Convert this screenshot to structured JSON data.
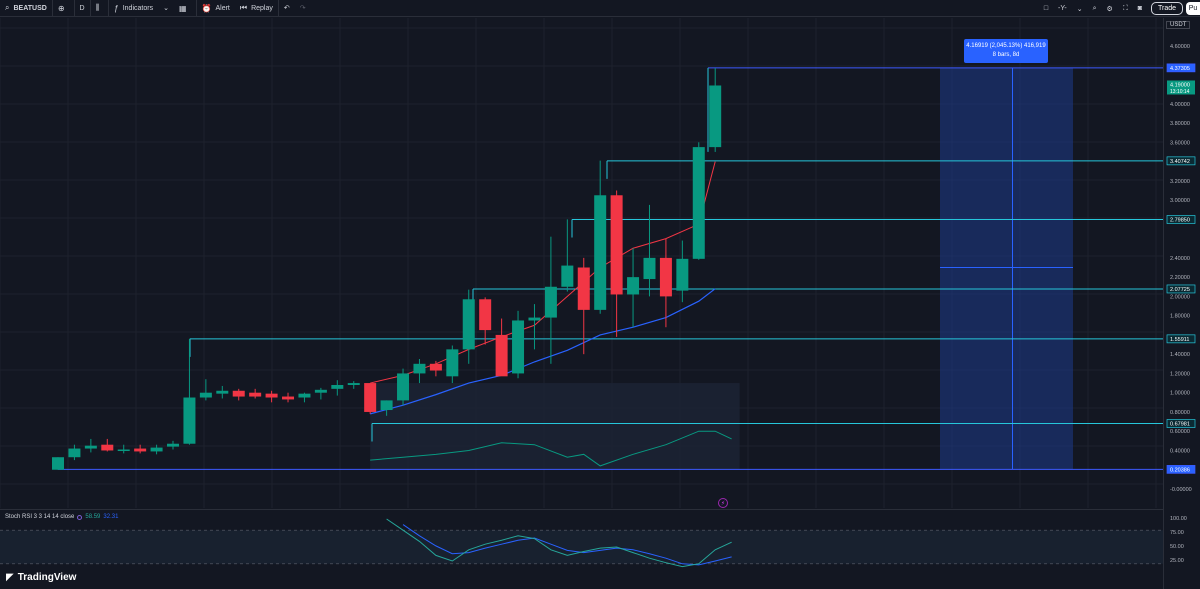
{
  "toolbar": {
    "symbol": "BEATUSD",
    "interval": "D",
    "indicators_label": "Indicators",
    "alert_label": "Alert",
    "replay_label": "Replay",
    "layout_label": "-Y-",
    "trade_label": "Trade",
    "publish_label": "Pu"
  },
  "axis": {
    "currency": "USDT",
    "labels": [
      {
        "text": "4.60000",
        "v": 4.6
      },
      {
        "text": "4.00000",
        "v": 4.0
      },
      {
        "text": "3.80000",
        "v": 3.8
      },
      {
        "text": "3.60000",
        "v": 3.6
      },
      {
        "text": "3.20000",
        "v": 3.2
      },
      {
        "text": "3.00000",
        "v": 3.0
      },
      {
        "text": "2.40000",
        "v": 2.4
      },
      {
        "text": "2.20000",
        "v": 2.2
      },
      {
        "text": "2.00000",
        "v": 2.0
      },
      {
        "text": "1.80000",
        "v": 1.8
      },
      {
        "text": "1.40000",
        "v": 1.4
      },
      {
        "text": "1.20000",
        "v": 1.2
      },
      {
        "text": "1.00000",
        "v": 1.0
      },
      {
        "text": "0.80000",
        "v": 0.8
      },
      {
        "text": "0.60000",
        "v": 0.6
      },
      {
        "text": "0.40000",
        "v": 0.4
      },
      {
        "text": "-0.00000",
        "v": 0.0
      }
    ],
    "price_lines": [
      {
        "text": "4.37305",
        "v": 4.37305,
        "color": "#3d5afe"
      },
      {
        "text": "3.40742",
        "v": 3.40742,
        "color": "#26c6da"
      },
      {
        "text": "2.79850",
        "v": 2.7985,
        "color": "#26c6da"
      },
      {
        "text": "2.07725",
        "v": 2.07725,
        "color": "#26c6da"
      },
      {
        "text": "1.55911",
        "v": 1.55911,
        "color": "#26c6da"
      },
      {
        "text": "0.67981",
        "v": 0.67981,
        "color": "#26c6da"
      },
      {
        "text": "0.20386",
        "v": 0.20386,
        "color": "#3d5afe"
      }
    ],
    "last_price": "4.19000",
    "countdown": "13:10:14"
  },
  "measure_tooltip": {
    "line1": "4.16919 (2,045.13%) 416,919",
    "line2": "8 bars, 8d"
  },
  "stoch": {
    "name": "Stoch RSI 3 3 14 14 close",
    "k_value": "58.59",
    "d_value": "32.31",
    "levels": [
      {
        "text": "100.00",
        "v": 100
      },
      {
        "text": "75.00",
        "v": 75
      },
      {
        "text": "50.00",
        "v": 50
      },
      {
        "text": "25.00",
        "v": 25
      }
    ]
  },
  "brand": {
    "name": "TradingView"
  },
  "colors": {
    "up": "#089981",
    "down": "#f23645",
    "ema_fast": "#f23645",
    "ema_slow": "#2962ff",
    "level": "#26c6da"
  },
  "candles": [
    {
      "o": 0.2,
      "h": 0.33,
      "l": 0.2,
      "c": 0.33
    },
    {
      "o": 0.33,
      "h": 0.46,
      "l": 0.3,
      "c": 0.42
    },
    {
      "o": 0.42,
      "h": 0.52,
      "l": 0.38,
      "c": 0.45
    },
    {
      "o": 0.46,
      "h": 0.52,
      "l": 0.39,
      "c": 0.4
    },
    {
      "o": 0.4,
      "h": 0.46,
      "l": 0.37,
      "c": 0.41
    },
    {
      "o": 0.42,
      "h": 0.46,
      "l": 0.37,
      "c": 0.39
    },
    {
      "o": 0.39,
      "h": 0.46,
      "l": 0.36,
      "c": 0.43
    },
    {
      "o": 0.44,
      "h": 0.5,
      "l": 0.41,
      "c": 0.47
    },
    {
      "o": 0.47,
      "h": 1.56,
      "l": 0.46,
      "c": 0.95
    },
    {
      "o": 0.95,
      "h": 1.14,
      "l": 0.92,
      "c": 1.0
    },
    {
      "o": 0.99,
      "h": 1.07,
      "l": 0.94,
      "c": 1.02
    },
    {
      "o": 1.02,
      "h": 1.04,
      "l": 0.92,
      "c": 0.96
    },
    {
      "o": 1.0,
      "h": 1.04,
      "l": 0.94,
      "c": 0.96
    },
    {
      "o": 0.99,
      "h": 1.02,
      "l": 0.9,
      "c": 0.95
    },
    {
      "o": 0.96,
      "h": 1.0,
      "l": 0.9,
      "c": 0.93
    },
    {
      "o": 0.95,
      "h": 1.0,
      "l": 0.9,
      "c": 0.99
    },
    {
      "o": 1.0,
      "h": 1.05,
      "l": 0.93,
      "c": 1.03
    },
    {
      "o": 1.04,
      "h": 1.13,
      "l": 0.97,
      "c": 1.08
    },
    {
      "o": 1.08,
      "h": 1.12,
      "l": 1.04,
      "c": 1.1
    },
    {
      "o": 1.1,
      "h": 1.1,
      "l": 0.78,
      "c": 0.8
    },
    {
      "o": 0.82,
      "h": 0.92,
      "l": 0.76,
      "c": 0.92
    },
    {
      "o": 0.92,
      "h": 1.25,
      "l": 0.87,
      "c": 1.2
    },
    {
      "o": 1.2,
      "h": 1.35,
      "l": 1.1,
      "c": 1.3
    },
    {
      "o": 1.3,
      "h": 1.33,
      "l": 1.17,
      "c": 1.23
    },
    {
      "o": 1.17,
      "h": 1.49,
      "l": 1.1,
      "c": 1.45
    },
    {
      "o": 1.45,
      "h": 2.07,
      "l": 1.3,
      "c": 1.97
    },
    {
      "o": 1.97,
      "h": 1.99,
      "l": 1.5,
      "c": 1.65
    },
    {
      "o": 1.6,
      "h": 1.77,
      "l": 1.2,
      "c": 1.17
    },
    {
      "o": 1.2,
      "h": 1.85,
      "l": 1.15,
      "c": 1.75
    },
    {
      "o": 1.75,
      "h": 1.92,
      "l": 1.45,
      "c": 1.78
    },
    {
      "o": 1.78,
      "h": 2.62,
      "l": 1.3,
      "c": 2.1
    },
    {
      "o": 2.1,
      "h": 2.8,
      "l": 2.05,
      "c": 2.32
    },
    {
      "o": 2.3,
      "h": 2.4,
      "l": 1.4,
      "c": 1.86
    },
    {
      "o": 1.86,
      "h": 3.41,
      "l": 1.82,
      "c": 3.05
    },
    {
      "o": 3.05,
      "h": 3.1,
      "l": 1.58,
      "c": 2.02
    },
    {
      "o": 2.02,
      "h": 2.5,
      "l": 1.68,
      "c": 2.2
    },
    {
      "o": 2.18,
      "h": 2.95,
      "l": 2.0,
      "c": 2.4
    },
    {
      "o": 2.4,
      "h": 2.6,
      "l": 1.68,
      "c": 2.0
    },
    {
      "o": 2.06,
      "h": 2.58,
      "l": 1.94,
      "c": 2.39
    },
    {
      "o": 2.39,
      "h": 3.6,
      "l": 2.38,
      "c": 3.55
    },
    {
      "o": 3.55,
      "h": 4.37,
      "l": 3.5,
      "c": 4.19
    }
  ],
  "ema_fast": [
    [
      19,
      1.1
    ],
    [
      21,
      1.18
    ],
    [
      23,
      1.3
    ],
    [
      25,
      1.45
    ],
    [
      27,
      1.58
    ],
    [
      29,
      1.7
    ],
    [
      31,
      2.0
    ],
    [
      33,
      2.3
    ],
    [
      35,
      2.5
    ],
    [
      37,
      2.6
    ],
    [
      39,
      2.75
    ],
    [
      40,
      3.4
    ]
  ],
  "ema_slow": [
    [
      19,
      0.78
    ],
    [
      21,
      0.87
    ],
    [
      23,
      0.98
    ],
    [
      25,
      1.1
    ],
    [
      27,
      1.18
    ],
    [
      29,
      1.32
    ],
    [
      31,
      1.44
    ],
    [
      33,
      1.6
    ],
    [
      35,
      1.68
    ],
    [
      37,
      1.78
    ],
    [
      39,
      1.95
    ],
    [
      40,
      2.08
    ]
  ],
  "band_line": [
    [
      19,
      0.3
    ],
    [
      21,
      0.33
    ],
    [
      23,
      0.36
    ],
    [
      25,
      0.4
    ],
    [
      27,
      0.48
    ],
    [
      29,
      0.46
    ],
    [
      31,
      0.33
    ],
    [
      32,
      0.36
    ],
    [
      33,
      0.24
    ],
    [
      35,
      0.36
    ],
    [
      37,
      0.46
    ],
    [
      39,
      0.6
    ],
    [
      40,
      0.6
    ],
    [
      41,
      0.52
    ]
  ],
  "stoch_k": [
    [
      20,
      100
    ],
    [
      21,
      80
    ],
    [
      22,
      60
    ],
    [
      23,
      35
    ],
    [
      24,
      25
    ],
    [
      25,
      45
    ],
    [
      26,
      55
    ],
    [
      27,
      62
    ],
    [
      28,
      70
    ],
    [
      29,
      65
    ],
    [
      30,
      45
    ],
    [
      31,
      35
    ],
    [
      32,
      42
    ],
    [
      33,
      48
    ],
    [
      34,
      50
    ],
    [
      35,
      40
    ],
    [
      36,
      30
    ],
    [
      37,
      22
    ],
    [
      38,
      15
    ],
    [
      39,
      20
    ],
    [
      40,
      45
    ],
    [
      41,
      58.59
    ]
  ],
  "stoch_d": [
    [
      21,
      90
    ],
    [
      22,
      70
    ],
    [
      23,
      52
    ],
    [
      24,
      38
    ],
    [
      25,
      40
    ],
    [
      26,
      48
    ],
    [
      27,
      55
    ],
    [
      28,
      62
    ],
    [
      29,
      66
    ],
    [
      30,
      55
    ],
    [
      31,
      44
    ],
    [
      32,
      40
    ],
    [
      33,
      44
    ],
    [
      34,
      48
    ],
    [
      35,
      45
    ],
    [
      36,
      38
    ],
    [
      37,
      30
    ],
    [
      38,
      20
    ],
    [
      39,
      18
    ],
    [
      40,
      25
    ],
    [
      41,
      32.31
    ]
  ],
  "measure_range": {
    "from_bar": 54,
    "to_bar": 62,
    "low": 0.20386,
    "high": 4.37305
  }
}
